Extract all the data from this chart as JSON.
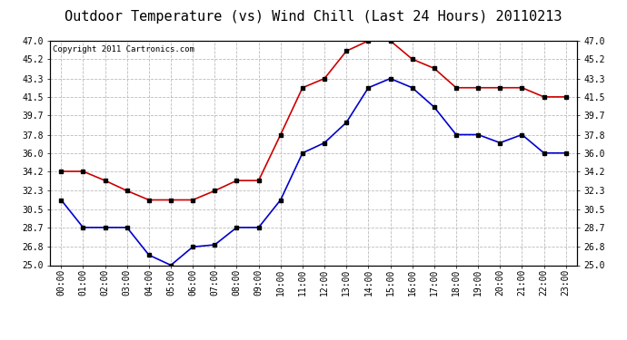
{
  "title": "Outdoor Temperature (vs) Wind Chill (Last 24 Hours) 20110213",
  "copyright": "Copyright 2011 Cartronics.com",
  "hours": [
    "00:00",
    "01:00",
    "02:00",
    "03:00",
    "04:00",
    "05:00",
    "06:00",
    "07:00",
    "08:00",
    "09:00",
    "10:00",
    "11:00",
    "12:00",
    "13:00",
    "14:00",
    "15:00",
    "16:00",
    "17:00",
    "18:00",
    "19:00",
    "20:00",
    "21:00",
    "22:00",
    "23:00"
  ],
  "temp": [
    34.2,
    34.2,
    33.3,
    32.3,
    31.4,
    31.4,
    31.4,
    32.3,
    33.3,
    33.3,
    37.8,
    42.4,
    43.3,
    46.0,
    47.0,
    47.0,
    45.2,
    44.3,
    42.4,
    42.4,
    42.4,
    42.4,
    41.5,
    41.5
  ],
  "windchill": [
    31.4,
    28.7,
    28.7,
    28.7,
    26.0,
    25.0,
    26.8,
    27.0,
    28.7,
    28.7,
    31.4,
    36.0,
    37.0,
    39.0,
    42.4,
    43.3,
    42.4,
    40.5,
    37.8,
    37.8,
    37.0,
    37.8,
    36.0,
    36.0
  ],
  "ylim": [
    25.0,
    47.0
  ],
  "yticks": [
    25.0,
    26.8,
    28.7,
    30.5,
    32.3,
    34.2,
    36.0,
    37.8,
    39.7,
    41.5,
    43.3,
    45.2,
    47.0
  ],
  "temp_color": "#cc0000",
  "windchill_color": "#0000cc",
  "grid_color": "#bbbbbb",
  "bg_color": "#ffffff",
  "title_fontsize": 11,
  "copyright_fontsize": 6.5,
  "tick_fontsize": 7
}
